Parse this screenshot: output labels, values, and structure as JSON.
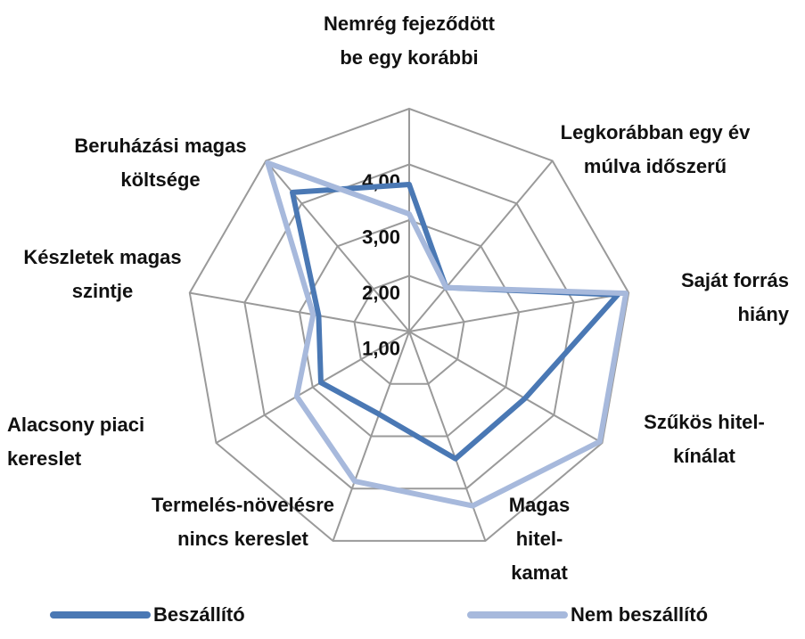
{
  "chart_data": {
    "type": "radar",
    "categories": [
      "Nemrég fejeződött be egy korábbi",
      "Legkorábban egy év múlva időszerű",
      "Saját forrás hiány",
      "Szűkös hitel-kínálat",
      "Magas hitel-kamat",
      "Termelés-növelésre nincs kereslet",
      "Alacsony piaci kereslet",
      "Készletek magas szintje",
      "Beruházási magas költsége"
    ],
    "series": [
      {
        "name": "Beszállító",
        "color": "#4a78b4",
        "values": [
          2.64,
          1.03,
          3.8,
          2.4,
          2.43,
          1.58,
          1.83,
          1.65,
          3.26
        ]
      },
      {
        "name": "Nem beszállító",
        "color": "#a7b9dc",
        "values": [
          2.11,
          1.03,
          3.95,
          3.95,
          3.33,
          2.86,
          2.33,
          1.75,
          3.95
        ]
      }
    ],
    "ylim": [
      0,
      4
    ],
    "yticks": [
      {
        "value": 1,
        "label": "1,00"
      },
      {
        "value": 2,
        "label": "2,00"
      },
      {
        "value": 3,
        "label": "3,00"
      },
      {
        "value": 4,
        "label": "4,00"
      }
    ],
    "grid": true
  }
}
